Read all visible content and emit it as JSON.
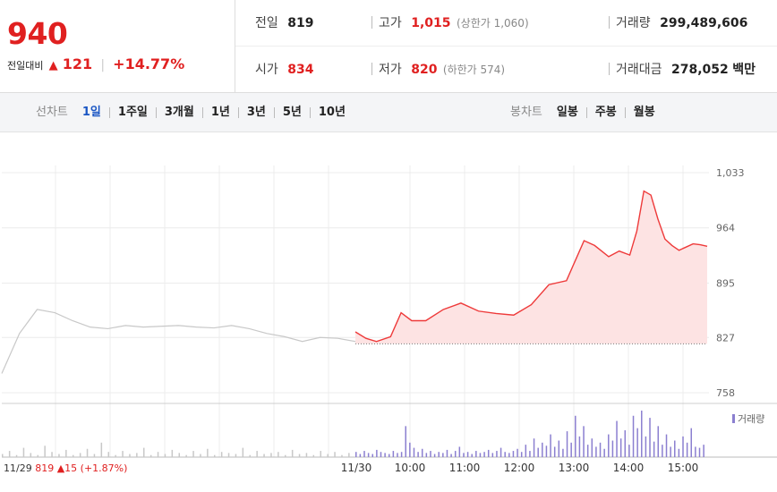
{
  "quote": {
    "price": "940",
    "change_label": "전일대비",
    "change_arrow": "▲",
    "change_value": "121",
    "change_pct": "+14.77%",
    "prev_close": {
      "label": "전일",
      "value": "819"
    },
    "open": {
      "label": "시가",
      "value": "834"
    },
    "high": {
      "label": "고가",
      "value": "1,015",
      "limit_label": "(상한가 1,060)"
    },
    "low": {
      "label": "저가",
      "value": "820",
      "limit_label": "(하한가 574)"
    },
    "volume": {
      "label": "거래량",
      "value": "299,489,606"
    },
    "turnover": {
      "label": "거래대금",
      "value": "278,052",
      "unit": "백만"
    }
  },
  "nav": {
    "line_chart": {
      "title": "선차트",
      "items": [
        "1일",
        "1주일",
        "3개월",
        "1년",
        "3년",
        "5년",
        "10년"
      ],
      "active_index": 0
    },
    "candle_chart": {
      "title": "봉차트",
      "items": [
        "일봉",
        "주봉",
        "월봉"
      ]
    }
  },
  "chart_data": {
    "type": "line",
    "y_ticks": [
      "1,033",
      "964",
      "895",
      "827",
      "758"
    ],
    "ylim": [
      758,
      1033
    ],
    "x_ticks": [
      "11/30",
      "10:00",
      "11:00",
      "12:00",
      "13:00",
      "14:00",
      "15:00"
    ],
    "prev_day": {
      "date": "11/29",
      "close": "819",
      "arrow": "▲",
      "change": "15",
      "pct": "(+1.87%)"
    },
    "volume_legend": "거래량",
    "baseline": 819,
    "prev_series": {
      "name": "11/29",
      "x": [
        0,
        0.05,
        0.1,
        0.15,
        0.2,
        0.25,
        0.3,
        0.35,
        0.4,
        0.45,
        0.5,
        0.55,
        0.6,
        0.65,
        0.7,
        0.75,
        0.8,
        0.85,
        0.9,
        0.95,
        1.0
      ],
      "y": [
        782,
        832,
        862,
        858,
        848,
        840,
        838,
        842,
        840,
        841,
        842,
        840,
        839,
        842,
        838,
        832,
        828,
        822,
        827,
        826,
        822
      ]
    },
    "today_series": {
      "name": "11/30",
      "x": [
        0,
        0.03,
        0.06,
        0.1,
        0.13,
        0.16,
        0.2,
        0.25,
        0.3,
        0.35,
        0.4,
        0.45,
        0.5,
        0.55,
        0.6,
        0.65,
        0.68,
        0.72,
        0.75,
        0.78,
        0.8,
        0.82,
        0.84,
        0.86,
        0.88,
        0.9,
        0.92,
        0.94,
        0.96,
        0.98,
        1.0
      ],
      "y": [
        834,
        826,
        822,
        828,
        858,
        848,
        848,
        862,
        870,
        860,
        857,
        855,
        868,
        893,
        898,
        948,
        942,
        928,
        935,
        930,
        960,
        1010,
        1005,
        975,
        950,
        942,
        936,
        940,
        944,
        943,
        941
      ]
    },
    "prev_volume": [
      3,
      6,
      2,
      9,
      4,
      2,
      11,
      5,
      3,
      7,
      2,
      4,
      8,
      3,
      14,
      5,
      2,
      6,
      3,
      4,
      9,
      2,
      5,
      3,
      7,
      4,
      2,
      6,
      3,
      8,
      2,
      5,
      4,
      3,
      9,
      2,
      6,
      3,
      4,
      5,
      2,
      7,
      3,
      4,
      2,
      6,
      3,
      5,
      2,
      4
    ],
    "today_volume": [
      5,
      3,
      6,
      4,
      3,
      7,
      5,
      4,
      3,
      6,
      4,
      5,
      30,
      14,
      9,
      5,
      8,
      4,
      6,
      3,
      5,
      4,
      7,
      3,
      6,
      10,
      4,
      5,
      3,
      6,
      4,
      5,
      7,
      4,
      6,
      9,
      5,
      4,
      6,
      8,
      5,
      12,
      6,
      18,
      9,
      14,
      11,
      22,
      10,
      16,
      8,
      25,
      14,
      40,
      20,
      30,
      12,
      18,
      10,
      14,
      8,
      22,
      16,
      35,
      18,
      26,
      12,
      40,
      28,
      45,
      20,
      38,
      15,
      30,
      12,
      22,
      10,
      16,
      8,
      20,
      14,
      28,
      10,
      9,
      12
    ]
  },
  "colors": {
    "up": "#e02020",
    "today_line": "#ee3a3a",
    "today_fill": "#fde3e3",
    "prev_line": "#c8c8c8",
    "volume_bar": "#8b7fd0",
    "prev_volume_bar": "#c8c8c8",
    "nav_active": "#1a56c4"
  }
}
